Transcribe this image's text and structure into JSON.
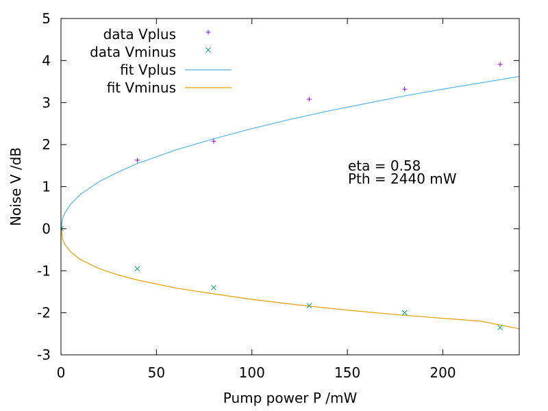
{
  "chart_data": {
    "type": "scatter",
    "xlabel": "Pump power P /mW",
    "ylabel": "Noise V /dB",
    "xlim": [
      0,
      240
    ],
    "ylim": [
      -3,
      5
    ],
    "x_ticks": [
      0,
      50,
      100,
      150,
      200
    ],
    "x_tick_labels": [
      "0",
      "50",
      "100",
      "150",
      "200"
    ],
    "y_ticks": [
      -3,
      -2,
      -1,
      0,
      1,
      2,
      3,
      4,
      5
    ],
    "y_tick_labels": [
      "-3",
      "-2",
      "-1",
      "0",
      "1",
      "2",
      "3",
      "4",
      "5"
    ],
    "grid": false,
    "legend_position": "top-left",
    "series": [
      {
        "name": "data Vplus",
        "kind": "points",
        "marker": "plus",
        "color": "#9400d3",
        "x": [
          0,
          40,
          80,
          130,
          180,
          230
        ],
        "y": [
          0,
          1.63,
          2.08,
          3.08,
          3.32,
          3.91
        ]
      },
      {
        "name": "data Vminus",
        "kind": "points",
        "marker": "cross",
        "color": "#009e73",
        "x": [
          0,
          40,
          80,
          130,
          180,
          230
        ],
        "y": [
          0,
          -0.95,
          -1.4,
          -1.83,
          -2.0,
          -2.35
        ]
      },
      {
        "name": "fit Vplus",
        "kind": "line",
        "color": "#56b4e9",
        "x": [
          0,
          1,
          2,
          5,
          10,
          20,
          30,
          40,
          60,
          80,
          100,
          120,
          140,
          160,
          180,
          200,
          220,
          240
        ],
        "y": [
          0,
          0.26,
          0.37,
          0.58,
          0.81,
          1.12,
          1.35,
          1.55,
          1.87,
          2.14,
          2.38,
          2.6,
          2.8,
          2.98,
          3.16,
          3.32,
          3.47,
          3.62
        ]
      },
      {
        "name": "fit Vminus",
        "kind": "line",
        "color": "#e69f00",
        "x": [
          0,
          1,
          2,
          5,
          10,
          20,
          30,
          40,
          60,
          80,
          100,
          120,
          140,
          160,
          180,
          200,
          220,
          240
        ],
        "y": [
          0,
          -0.27,
          -0.37,
          -0.55,
          -0.73,
          -0.95,
          -1.1,
          -1.22,
          -1.41,
          -1.55,
          -1.68,
          -1.79,
          -1.89,
          -1.98,
          -2.06,
          -2.13,
          -2.2,
          -2.38
        ]
      }
    ],
    "annotations": [
      "eta = 0.58",
      "Pth = 2440 mW"
    ]
  }
}
